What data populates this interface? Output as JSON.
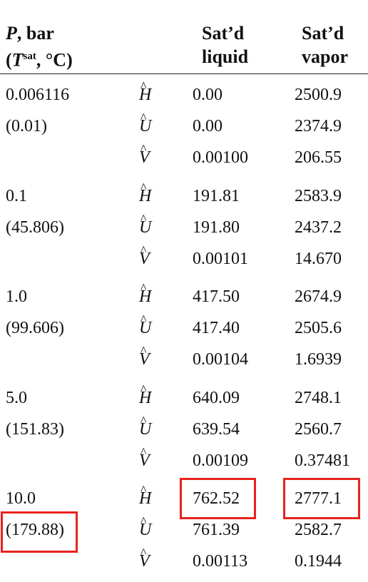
{
  "header": {
    "pressure_line1": "P, bar",
    "pressure_line2_open": "(",
    "pressure_line2_T": "T",
    "pressure_line2_sup": "sat",
    "pressure_line2_rest": ", °C)",
    "liquid_line1": "Sat’d",
    "liquid_line2": "liquid",
    "vapor_line1": "Sat’d",
    "vapor_line2": "vapor"
  },
  "symbols": {
    "H": "H",
    "U": "U",
    "V": "V",
    "hat": "^"
  },
  "rows": [
    {
      "pressure": "0.006116",
      "tsat": "(0.01)",
      "H": {
        "liquid": "0.00",
        "vapor": "2500.9"
      },
      "U": {
        "liquid": "0.00",
        "vapor": "2374.9"
      },
      "V": {
        "liquid": "0.00100",
        "vapor": "206.55"
      }
    },
    {
      "pressure": "0.1",
      "tsat": "(45.806)",
      "H": {
        "liquid": "191.81",
        "vapor": "2583.9"
      },
      "U": {
        "liquid": "191.80",
        "vapor": "2437.2"
      },
      "V": {
        "liquid": "0.00101",
        "vapor": "14.670"
      }
    },
    {
      "pressure": "1.0",
      "tsat": "(99.606)",
      "H": {
        "liquid": "417.50",
        "vapor": "2674.9"
      },
      "U": {
        "liquid": "417.40",
        "vapor": "2505.6"
      },
      "V": {
        "liquid": "0.00104",
        "vapor": "1.6939"
      }
    },
    {
      "pressure": "5.0",
      "tsat": "(151.83)",
      "H": {
        "liquid": "640.09",
        "vapor": "2748.1"
      },
      "U": {
        "liquid": "639.54",
        "vapor": "2560.7"
      },
      "V": {
        "liquid": "0.00109",
        "vapor": "0.37481"
      }
    },
    {
      "pressure": "10.0",
      "tsat": "(179.88)",
      "H": {
        "liquid": "762.52",
        "vapor": "2777.1"
      },
      "U": {
        "liquid": "761.39",
        "vapor": "2582.7"
      },
      "V": {
        "liquid": "0.00113",
        "vapor": "0.1944"
      }
    }
  ],
  "highlight_color": "#e8231f"
}
